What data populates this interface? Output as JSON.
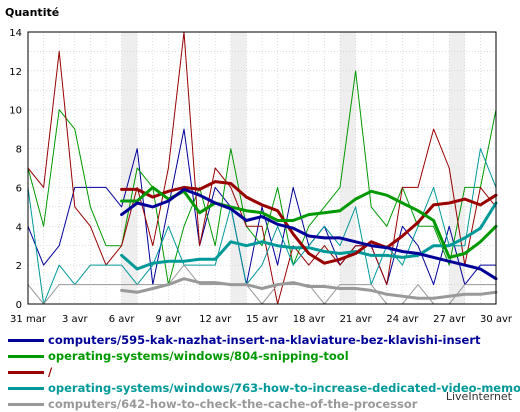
{
  "chart_data": {
    "type": "line",
    "ylabel": "Quantité",
    "ylim": [
      0,
      14
    ],
    "yticks": [
      "0",
      "2",
      "4",
      "6",
      "8",
      "10",
      "12",
      "14"
    ],
    "categories": [
      "31 mar",
      "1 avr",
      "2 avr",
      "3 avr",
      "4 avr",
      "5 avr",
      "6 avr",
      "7 avr",
      "8 avr",
      "9 avr",
      "10 avr",
      "11 avr",
      "12 avr",
      "13 avr",
      "14 avr",
      "15 avr",
      "16 avr",
      "17 avr",
      "18 avr",
      "19 avr",
      "20 avr",
      "21 avr",
      "22 avr",
      "23 avr",
      "24 avr",
      "25 avr",
      "26 avr",
      "27 avr",
      "28 avr",
      "29 avr",
      "30 avr"
    ],
    "xtick_labels": [
      "31 mar",
      "",
      "",
      "3 avr",
      "",
      "",
      "6 avr",
      "",
      "",
      "9 avr",
      "",
      "",
      "12 avr",
      "",
      "",
      "15 avr",
      "",
      "",
      "18 avr",
      "",
      "",
      "21 avr",
      "",
      "",
      "24 avr",
      "",
      "",
      "27 avr",
      "",
      "",
      "30 avr"
    ],
    "grid": true,
    "legend_position": "bottom",
    "series": [
      {
        "name": "computers/595-kak-nazhat-insert-na-klaviature-bez-klavishi-insert",
        "color": "#000099",
        "values": [
          4,
          2,
          3,
          6,
          6,
          6,
          5,
          8,
          1,
          5,
          9,
          3,
          6,
          5,
          1,
          5,
          2,
          6,
          3,
          4,
          2,
          3,
          3,
          1,
          4,
          3,
          1,
          4,
          1,
          2,
          2
        ],
        "average": [
          null,
          null,
          null,
          null,
          null,
          null,
          4.6,
          5.2,
          5.0,
          5.3,
          5.9,
          5.6,
          5.2,
          4.9,
          4.3,
          4.5,
          4.1,
          3.9,
          3.5,
          3.4,
          3.4,
          3.2,
          3.0,
          2.9,
          2.7,
          2.6,
          2.4,
          2.2,
          2.0,
          1.8,
          1.3
        ]
      },
      {
        "name": "operating-systems/windows/804-snipping-tool",
        "color": "#009900",
        "values": [
          7,
          4,
          10,
          9,
          5,
          3,
          3,
          7,
          6,
          1,
          4,
          6,
          3,
          8,
          4,
          3,
          6,
          2,
          4,
          5,
          6,
          12,
          5,
          4,
          6,
          4,
          4,
          2,
          6,
          6,
          10
        ],
        "average": [
          null,
          null,
          null,
          null,
          null,
          null,
          5.3,
          5.3,
          6.0,
          5.4,
          5.8,
          4.7,
          5.2,
          5.0,
          4.8,
          4.7,
          4.3,
          4.3,
          4.6,
          4.7,
          4.8,
          5.4,
          5.8,
          5.6,
          5.2,
          4.8,
          4.3,
          2.4,
          2.6,
          3.2,
          4.0
        ]
      },
      {
        "name": "/",
        "color": "#990000",
        "values": [
          7,
          6,
          13,
          5,
          4,
          2,
          3,
          6,
          3,
          7,
          14,
          3,
          7,
          6,
          4,
          4,
          0,
          3,
          2,
          3,
          2,
          3,
          3,
          1,
          6,
          6,
          9,
          7,
          2,
          6,
          5
        ],
        "average": [
          null,
          null,
          null,
          null,
          null,
          null,
          5.9,
          5.9,
          5.5,
          5.8,
          6.0,
          5.9,
          6.3,
          6.2,
          5.5,
          5.1,
          4.8,
          3.6,
          2.6,
          2.1,
          2.3,
          2.6,
          3.2,
          2.9,
          3.5,
          4.2,
          5.1,
          5.2,
          5.4,
          5.1,
          5.6
        ]
      },
      {
        "name": "operating-systems/windows/763-how-to-increase-dedicated-video-memory",
        "color": "#009999",
        "values": [
          6,
          0,
          2,
          1,
          2,
          2,
          2,
          1,
          2,
          4,
          2,
          2,
          2,
          5,
          1,
          2,
          4,
          2,
          3,
          4,
          3,
          5,
          1,
          3,
          2,
          4,
          6,
          3,
          3,
          8,
          6
        ],
        "average": [
          null,
          null,
          null,
          null,
          null,
          null,
          2.5,
          1.8,
          2.1,
          2.2,
          2.2,
          2.3,
          2.3,
          3.2,
          3.0,
          3.2,
          3.0,
          2.9,
          2.9,
          2.7,
          2.6,
          2.7,
          2.5,
          2.5,
          2.4,
          2.5,
          3.0,
          3.0,
          3.4,
          3.9,
          5.2
        ]
      },
      {
        "name": "computers/642-how-to-check-the-cache-of-the-processor",
        "color": "#999999",
        "values": [
          1,
          0,
          1,
          1,
          1,
          1,
          1,
          1,
          1,
          1,
          2,
          1,
          1,
          1,
          1,
          0,
          1,
          1,
          1,
          0,
          1,
          1,
          1,
          0,
          0,
          1,
          0,
          0,
          1,
          1,
          1
        ],
        "average": [
          null,
          null,
          null,
          null,
          null,
          null,
          0.7,
          0.6,
          0.8,
          1.0,
          1.3,
          1.1,
          1.1,
          1.0,
          1.0,
          0.8,
          1.0,
          1.1,
          0.9,
          0.9,
          0.8,
          0.8,
          0.7,
          0.5,
          0.4,
          0.3,
          0.3,
          0.4,
          0.5,
          0.5,
          0.6
        ]
      }
    ]
  },
  "footer": {
    "brand": "LiveInternet"
  }
}
